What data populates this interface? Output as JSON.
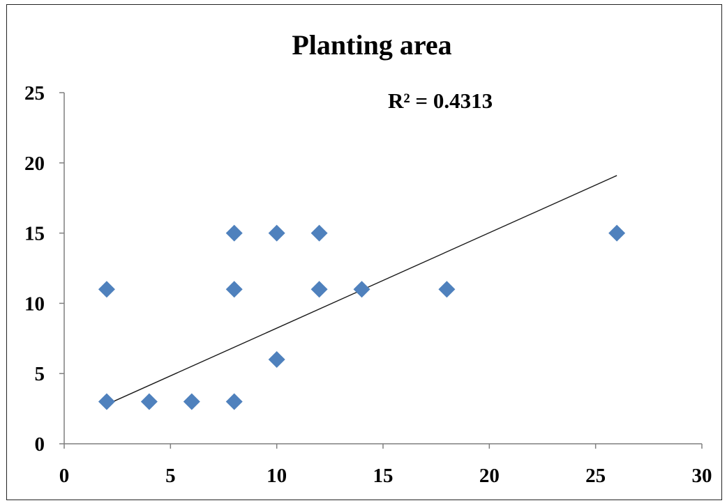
{
  "chart_data": {
    "type": "scatter",
    "title": "Planting area",
    "xlabel": "",
    "ylabel": "",
    "xlim": [
      0,
      30
    ],
    "ylim": [
      0,
      25
    ],
    "xticks": [
      0,
      5,
      10,
      15,
      20,
      25,
      30
    ],
    "yticks": [
      0,
      5,
      10,
      15,
      20,
      25
    ],
    "grid": false,
    "legend": "none",
    "marker": "diamond",
    "marker_color": "#4F81BD",
    "series": [
      {
        "points": [
          {
            "x": 2,
            "y": 11
          },
          {
            "x": 2,
            "y": 3
          },
          {
            "x": 4,
            "y": 3
          },
          {
            "x": 6,
            "y": 3
          },
          {
            "x": 8,
            "y": 15
          },
          {
            "x": 8,
            "y": 11
          },
          {
            "x": 8,
            "y": 3
          },
          {
            "x": 10,
            "y": 15
          },
          {
            "x": 10,
            "y": 6
          },
          {
            "x": 12,
            "y": 15
          },
          {
            "x": 12,
            "y": 11
          },
          {
            "x": 14,
            "y": 11
          },
          {
            "x": 18,
            "y": 11
          },
          {
            "x": 26,
            "y": 15
          }
        ]
      }
    ],
    "trendline": {
      "type": "linear",
      "start": {
        "x": 2,
        "y": 2.8
      },
      "end": {
        "x": 26,
        "y": 19.1
      },
      "color": "#1a1a1a"
    },
    "annotation": {
      "text": "R² = 0.4313"
    }
  }
}
